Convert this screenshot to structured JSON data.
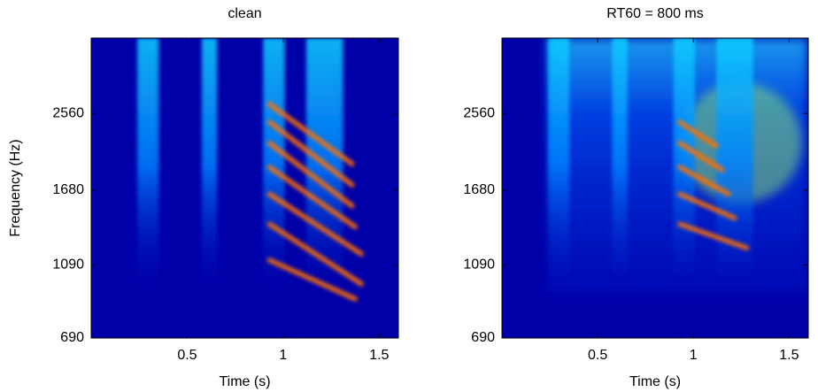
{
  "chart_data": [
    {
      "type": "spectrogram",
      "title": "clean",
      "xlabel": "Time (s)",
      "ylabel": "Frequency (Hz)",
      "xlim": [
        0,
        1.6
      ],
      "xticks": [
        0.5,
        1,
        1.5
      ],
      "ylim": [
        690,
        3820
      ],
      "yticks": [
        690,
        1090,
        1680,
        2560
      ],
      "yscale": "erb"
    },
    {
      "type": "spectrogram",
      "title": "RT60 = 800 ms",
      "xlabel": "Time (s)",
      "xlim": [
        0,
        1.6
      ],
      "xticks": [
        0.5,
        1,
        1.5
      ],
      "ylim": [
        690,
        3820
      ],
      "yticks": [
        690,
        1090,
        1680,
        2560
      ],
      "yscale": "erb"
    }
  ]
}
